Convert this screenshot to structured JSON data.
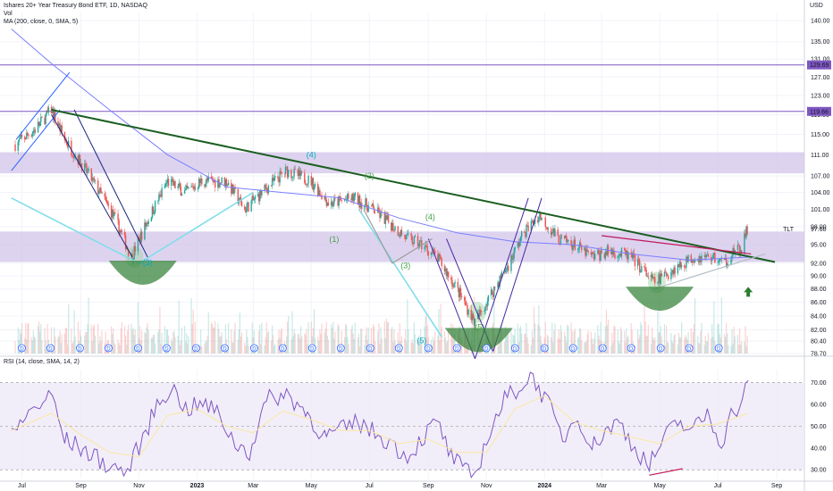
{
  "header": {
    "title": "Ishares 20+ Year Treasury Bond ETF, 1D, NASDAQ",
    "vol": "Vol",
    "ma": "MA (200, close, 0, SMA, 5)",
    "rsi": "RSI (14, close, SMA, 14, 2)",
    "currency": "USD"
  },
  "chart_data": [
    {
      "type": "candlestick",
      "title": "Ishares 20+ Year Treasury Bond ETF, 1D, NASDAQ",
      "x_ticks": [
        "Jul",
        "Sep",
        "Nov",
        "2023",
        "Mar",
        "May",
        "Jul",
        "Sep",
        "Nov",
        "2024",
        "Mar",
        "May",
        "Jul",
        "Sep"
      ],
      "y_ticks": [
        140.0,
        135.0,
        131.0,
        127.0,
        123.0,
        119.0,
        115.0,
        111.0,
        107.0,
        104.0,
        101.0,
        98.0,
        95.0,
        92.0,
        90.0,
        88.0,
        86.0,
        84.0,
        82.0,
        80.4,
        78.7
      ],
      "y_scale": "log",
      "ylim": [
        78.7,
        142
      ],
      "symbol_label": "TLT",
      "last_price": 97.6,
      "horizontal_levels": [
        {
          "label": "129.69",
          "value": 129.69,
          "color": "#7e57c2"
        },
        {
          "label": "119.66",
          "value": 119.66,
          "color": "#7e57c2"
        }
      ],
      "zones": [
        {
          "from": 107.5,
          "to": 111.5,
          "color": "#d1c4e9"
        },
        {
          "from": 92.2,
          "to": 97.2,
          "color": "#d1c4e9"
        }
      ],
      "close_path": [
        {
          "t": "2022-06-24",
          "v": 113
        },
        {
          "t": "2022-07-15",
          "v": 116
        },
        {
          "t": "2022-08-01",
          "v": 120
        },
        {
          "t": "2022-08-15",
          "v": 114
        },
        {
          "t": "2022-09-10",
          "v": 107
        },
        {
          "t": "2022-10-05",
          "v": 100
        },
        {
          "t": "2022-10-24",
          "v": 93
        },
        {
          "t": "2022-11-10",
          "v": 99
        },
        {
          "t": "2022-12-01",
          "v": 106
        },
        {
          "t": "2022-12-20",
          "v": 104
        },
        {
          "t": "2023-01-05",
          "v": 106
        },
        {
          "t": "2023-02-01",
          "v": 106
        },
        {
          "t": "2023-02-20",
          "v": 101
        },
        {
          "t": "2023-03-10",
          "v": 104
        },
        {
          "t": "2023-04-05",
          "v": 108
        },
        {
          "t": "2023-05-01",
          "v": 106
        },
        {
          "t": "2023-05-20",
          "v": 102
        },
        {
          "t": "2023-06-15",
          "v": 103
        },
        {
          "t": "2023-07-05",
          "v": 101
        },
        {
          "t": "2023-08-10",
          "v": 96
        },
        {
          "t": "2023-08-25",
          "v": 95
        },
        {
          "t": "2023-09-10",
          "v": 93
        },
        {
          "t": "2023-10-01",
          "v": 88
        },
        {
          "t": "2023-10-20",
          "v": 83
        },
        {
          "t": "2023-11-05",
          "v": 87
        },
        {
          "t": "2023-11-25",
          "v": 92
        },
        {
          "t": "2023-12-10",
          "v": 97
        },
        {
          "t": "2023-12-27",
          "v": 100
        },
        {
          "t": "2024-01-15",
          "v": 96
        },
        {
          "t": "2024-02-01",
          "v": 95
        },
        {
          "t": "2024-02-20",
          "v": 93
        },
        {
          "t": "2024-03-10",
          "v": 94
        },
        {
          "t": "2024-04-01",
          "v": 93
        },
        {
          "t": "2024-04-25",
          "v": 89
        },
        {
          "t": "2024-05-15",
          "v": 91
        },
        {
          "t": "2024-06-05",
          "v": 93
        },
        {
          "t": "2024-06-25",
          "v": 93
        },
        {
          "t": "2024-07-08",
          "v": 92
        },
        {
          "t": "2024-07-18",
          "v": 94
        },
        {
          "t": "2024-07-25",
          "v": 94
        },
        {
          "t": "2024-08-01",
          "v": 97.6
        }
      ],
      "ma_series": {
        "name": "MA (200, close, 0, SMA, 5)",
        "points": [
          {
            "t": "2022-06-20",
            "v": 138
          },
          {
            "t": "2022-08-01",
            "v": 130
          },
          {
            "t": "2022-10-01",
            "v": 120
          },
          {
            "t": "2022-12-01",
            "v": 111
          },
          {
            "t": "2023-02-01",
            "v": 105
          },
          {
            "t": "2023-04-01",
            "v": 104
          },
          {
            "t": "2023-06-01",
            "v": 103
          },
          {
            "t": "2023-08-01",
            "v": 99.5
          },
          {
            "t": "2023-10-01",
            "v": 97
          },
          {
            "t": "2023-12-01",
            "v": 95.5
          },
          {
            "t": "2024-02-01",
            "v": 95
          },
          {
            "t": "2024-04-01",
            "v": 93.5
          },
          {
            "t": "2024-06-01",
            "v": 92.5
          },
          {
            "t": "2024-08-05",
            "v": 93
          }
        ]
      },
      "trendlines": [
        {
          "name": "long-downtrend",
          "color": "#1b5e20",
          "from": {
            "t": "2022-08-01",
            "v": 120
          },
          "to": {
            "t": "2024-08-30",
            "v": 92.2
          }
        },
        {
          "name": "teal-line-1",
          "color": "#80deea",
          "from": {
            "t": "2022-06-20",
            "v": 103
          },
          "to": {
            "t": "2022-11-01",
            "v": 92
          }
        },
        {
          "name": "teal-line-2",
          "color": "#80deea",
          "from": {
            "t": "2022-11-01",
            "v": 92
          },
          "to": {
            "t": "2023-03-01",
            "v": 104
          }
        },
        {
          "name": "teal-line-3",
          "color": "#80deea",
          "from": {
            "t": "2023-06-20",
            "v": 101
          },
          "to": {
            "t": "2023-09-15",
            "v": 81
          }
        },
        {
          "name": "recent-support",
          "color": "#b0bec5",
          "from": {
            "t": "2024-04-25",
            "v": 88
          },
          "to": {
            "t": "2024-08-20",
            "v": 93.5
          }
        },
        {
          "name": "recent-resistance",
          "color": "#c2185b",
          "from": {
            "t": "2024-03-01",
            "v": 96.5
          },
          "to": {
            "t": "2024-08-05",
            "v": 93.5
          }
        },
        {
          "name": "grey-wave-1",
          "color": "#9e9e9e",
          "from": {
            "t": "2023-06-25",
            "v": 101
          },
          "to": {
            "t": "2023-07-25",
            "v": 92
          }
        },
        {
          "name": "grey-wave-2",
          "color": "#9e9e9e",
          "from": {
            "t": "2023-07-25",
            "v": 92
          },
          "to": {
            "t": "2023-09-05",
            "v": 96
          }
        }
      ],
      "channels": [
        {
          "name": "parallel-channel-2022-a",
          "color": "#2962ff",
          "lines": [
            [
              {
                "t": "2022-06-20",
                "v": 108
              },
              {
                "t": "2022-08-10",
                "v": 120
              }
            ],
            [
              {
                "t": "2022-06-25",
                "v": 114
              },
              {
                "t": "2022-08-20",
                "v": 128
              }
            ]
          ]
        },
        {
          "name": "parallel-channel-2022-b",
          "color": "#1a237e",
          "lines": [
            [
              {
                "t": "2022-08-01",
                "v": 119
              },
              {
                "t": "2022-10-25",
                "v": 93
              }
            ],
            [
              {
                "t": "2022-08-25",
                "v": 120
              },
              {
                "t": "2022-11-10",
                "v": 93
              }
            ]
          ]
        },
        {
          "name": "channel-2023-a",
          "color": "#4527a0",
          "lines": [
            [
              {
                "t": "2023-09-01",
                "v": 96
              },
              {
                "t": "2023-10-20",
                "v": 78
              }
            ],
            [
              {
                "t": "2023-09-20",
                "v": 96
              },
              {
                "t": "2023-11-08",
                "v": 79
              }
            ]
          ]
        },
        {
          "name": "channel-2023-b",
          "color": "#4527a0",
          "lines": [
            [
              {
                "t": "2023-10-20",
                "v": 78
              },
              {
                "t": "2023-12-15",
                "v": 103
              }
            ],
            [
              {
                "t": "2023-11-08",
                "v": 79
              },
              {
                "t": "2023-12-29",
                "v": 103
              }
            ]
          ]
        }
      ],
      "wave_labels": [
        {
          "text": "(4)",
          "t": "2023-05-01",
          "v": 110.5,
          "color": "#00acc1"
        },
        {
          "text": "(2)",
          "t": "2023-07-01",
          "v": 106.5,
          "color": "#43a047"
        },
        {
          "text": "(1)",
          "t": "2023-05-25",
          "v": 95.5,
          "color": "#43a047"
        },
        {
          "text": "(3)",
          "t": "2023-08-08",
          "v": 91.2,
          "color": "#43a047"
        },
        {
          "text": "(4)",
          "t": "2023-09-03",
          "v": 99.2,
          "color": "#43a047"
        },
        {
          "text": "(3)",
          "t": "2022-11-10",
          "v": 91.7,
          "color": "#00acc1"
        },
        {
          "text": "(5)",
          "t": "2023-10-25",
          "v": 82.0,
          "color": "#43a047"
        },
        {
          "text": "(5)",
          "t": "2023-08-25",
          "v": 80.1,
          "color": "#00acc1"
        }
      ],
      "cups": [
        {
          "center": {
            "t": "2022-11-05",
            "v": 91.0
          },
          "color": "#2e7d32"
        },
        {
          "center": {
            "t": "2023-10-24",
            "v": 81.0
          },
          "color": "#2e7d32"
        },
        {
          "center": {
            "t": "2024-05-01",
            "v": 87.0
          },
          "color": "#2e7d32"
        }
      ],
      "highlight_ellipses": [
        {
          "center": {
            "t": "2022-10-27",
            "v": 93.0
          }
        },
        {
          "center": {
            "t": "2023-10-22",
            "v": 84.5
          }
        },
        {
          "center": {
            "t": "2024-04-28",
            "v": 89.0
          }
        }
      ],
      "up_arrow": {
        "t": "2024-08-02",
        "v": 87.5,
        "color": "#2e7d32"
      },
      "dividend_marker": "D"
    },
    {
      "type": "line",
      "title": "RSI (14, close, SMA, 14, 2)",
      "y_ticks": [
        70.0,
        60.0,
        50.0,
        40.0,
        30.0
      ],
      "ylim": [
        26,
        76
      ],
      "bands": [
        70,
        50,
        30
      ],
      "series": [
        {
          "name": "RSI",
          "points": [
            {
              "t": "2022-06-20",
              "v": 45
            },
            {
              "t": "2022-07-05",
              "v": 55
            },
            {
              "t": "2022-07-20",
              "v": 60
            },
            {
              "t": "2022-08-02",
              "v": 64
            },
            {
              "t": "2022-08-15",
              "v": 44
            },
            {
              "t": "2022-09-01",
              "v": 40
            },
            {
              "t": "2022-09-15",
              "v": 36
            },
            {
              "t": "2022-10-01",
              "v": 32
            },
            {
              "t": "2022-10-20",
              "v": 29
            },
            {
              "t": "2022-11-05",
              "v": 44
            },
            {
              "t": "2022-11-20",
              "v": 60
            },
            {
              "t": "2022-12-05",
              "v": 68
            },
            {
              "t": "2022-12-20",
              "v": 58
            },
            {
              "t": "2023-01-10",
              "v": 60
            },
            {
              "t": "2023-01-25",
              "v": 55
            },
            {
              "t": "2023-02-10",
              "v": 42
            },
            {
              "t": "2023-02-25",
              "v": 38
            },
            {
              "t": "2023-03-15",
              "v": 62
            },
            {
              "t": "2023-04-05",
              "v": 65
            },
            {
              "t": "2023-04-25",
              "v": 57
            },
            {
              "t": "2023-05-15",
              "v": 45
            },
            {
              "t": "2023-06-01",
              "v": 48
            },
            {
              "t": "2023-06-20",
              "v": 52
            },
            {
              "t": "2023-07-10",
              "v": 46
            },
            {
              "t": "2023-07-25",
              "v": 42
            },
            {
              "t": "2023-08-10",
              "v": 36
            },
            {
              "t": "2023-08-25",
              "v": 44
            },
            {
              "t": "2023-09-10",
              "v": 52
            },
            {
              "t": "2023-09-25",
              "v": 36
            },
            {
              "t": "2023-10-10",
              "v": 29
            },
            {
              "t": "2023-10-20",
              "v": 27
            },
            {
              "t": "2023-11-05",
              "v": 48
            },
            {
              "t": "2023-11-20",
              "v": 62
            },
            {
              "t": "2023-12-05",
              "v": 68
            },
            {
              "t": "2023-12-20",
              "v": 73
            },
            {
              "t": "2024-01-05",
              "v": 60
            },
            {
              "t": "2024-01-20",
              "v": 44
            },
            {
              "t": "2024-02-05",
              "v": 55
            },
            {
              "t": "2024-02-20",
              "v": 40
            },
            {
              "t": "2024-03-05",
              "v": 48
            },
            {
              "t": "2024-03-20",
              "v": 52
            },
            {
              "t": "2024-04-05",
              "v": 40
            },
            {
              "t": "2024-04-20",
              "v": 32
            },
            {
              "t": "2024-05-05",
              "v": 44
            },
            {
              "t": "2024-05-20",
              "v": 52
            },
            {
              "t": "2024-06-05",
              "v": 48
            },
            {
              "t": "2024-06-20",
              "v": 56
            },
            {
              "t": "2024-07-05",
              "v": 42
            },
            {
              "t": "2024-07-15",
              "v": 55
            },
            {
              "t": "2024-07-25",
              "v": 60
            },
            {
              "t": "2024-08-02",
              "v": 71
            }
          ]
        },
        {
          "name": "RSI-based MA",
          "points": [
            {
              "t": "2022-06-20",
              "v": 48
            },
            {
              "t": "2022-08-01",
              "v": 56
            },
            {
              "t": "2022-09-01",
              "v": 46
            },
            {
              "t": "2022-10-01",
              "v": 38
            },
            {
              "t": "2022-11-01",
              "v": 36
            },
            {
              "t": "2022-12-01",
              "v": 55
            },
            {
              "t": "2023-01-01",
              "v": 58
            },
            {
              "t": "2023-02-01",
              "v": 50
            },
            {
              "t": "2023-03-01",
              "v": 47
            },
            {
              "t": "2023-04-01",
              "v": 57
            },
            {
              "t": "2023-05-01",
              "v": 53
            },
            {
              "t": "2023-06-01",
              "v": 48
            },
            {
              "t": "2023-07-01",
              "v": 48
            },
            {
              "t": "2023-08-01",
              "v": 42
            },
            {
              "t": "2023-09-01",
              "v": 44
            },
            {
              "t": "2023-10-01",
              "v": 38
            },
            {
              "t": "2023-11-01",
              "v": 38
            },
            {
              "t": "2023-12-01",
              "v": 58
            },
            {
              "t": "2024-01-01",
              "v": 64
            },
            {
              "t": "2024-02-01",
              "v": 52
            },
            {
              "t": "2024-03-01",
              "v": 48
            },
            {
              "t": "2024-04-01",
              "v": 45
            },
            {
              "t": "2024-05-01",
              "v": 42
            },
            {
              "t": "2024-06-01",
              "v": 50
            },
            {
              "t": "2024-07-01",
              "v": 51
            },
            {
              "t": "2024-08-02",
              "v": 56
            }
          ]
        }
      ],
      "divergence_line": {
        "from": {
          "t": "2024-04-20",
          "v": 27.5
        },
        "to": {
          "t": "2024-05-25",
          "v": 30.5
        },
        "color": "#c2185b"
      }
    }
  ],
  "colors": {
    "up": "#26a69a",
    "down": "#ef5350",
    "ma": "#7b7fff",
    "rsi": "#7e57c2",
    "rsi_ma": "#f9e79f",
    "rsi_band_fill": "#ede7f6",
    "zone": "#d1c4e9",
    "level_line": "#7e57c2"
  }
}
